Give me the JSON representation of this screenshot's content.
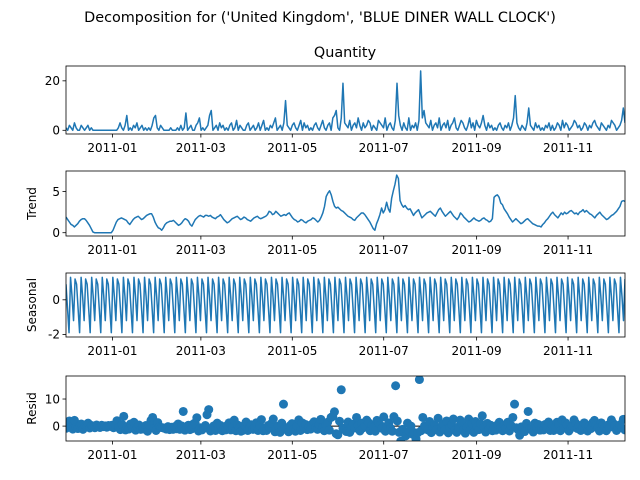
{
  "figure": {
    "suptitle": "Decomposition for ('United Kingdom', 'BLUE DINER WALL CLOCK')"
  },
  "chart_data": [
    {
      "type": "line",
      "panel": "observed",
      "title": "Quantity",
      "ylabel": "",
      "x_start": "2010-12-01",
      "x_end": "2011-12-09",
      "xticks": [
        "2011-01",
        "2011-03",
        "2011-05",
        "2011-07",
        "2011-09",
        "2011-11"
      ],
      "ylim": [
        -1.5,
        26
      ],
      "yticks": [
        0,
        20
      ],
      "grid": false,
      "series": [
        {
          "values": [
            1,
            0,
            2,
            1,
            0,
            3,
            1,
            0,
            0,
            2,
            1,
            0,
            1,
            2,
            0,
            1,
            0,
            0,
            0,
            0,
            0,
            0,
            0,
            0,
            0,
            0,
            0,
            0,
            0,
            0,
            0,
            1,
            3,
            1,
            0,
            2,
            6,
            0,
            1,
            0,
            2,
            1,
            3,
            0,
            1,
            2,
            0,
            1,
            0,
            1,
            0,
            2,
            5,
            6,
            1,
            0,
            2,
            1,
            0,
            0,
            0,
            0,
            1,
            0,
            0,
            0,
            1,
            0,
            2,
            0,
            1,
            7,
            0,
            1,
            2,
            0,
            0,
            2,
            3,
            5,
            0,
            1,
            0,
            1,
            2,
            6,
            8,
            0,
            1,
            2,
            0,
            3,
            1,
            2,
            0,
            1,
            0,
            2,
            3,
            0,
            1,
            4,
            0,
            2,
            1,
            0,
            0,
            2,
            3,
            0,
            1,
            2,
            0,
            1,
            3,
            0,
            2,
            4,
            0,
            1,
            0,
            2,
            1,
            3,
            5,
            0,
            1,
            2,
            0,
            3,
            12,
            2,
            1,
            0,
            2,
            3,
            1,
            0,
            2,
            4,
            0,
            3,
            1,
            2,
            0,
            1,
            0,
            2,
            3,
            1,
            0,
            2,
            4,
            1,
            0,
            2,
            3,
            0,
            5,
            6,
            8,
            1,
            0,
            5,
            19,
            3,
            2,
            1,
            4,
            0,
            2,
            3,
            1,
            5,
            2,
            0,
            3,
            1,
            2,
            4,
            3,
            0,
            2,
            1,
            0,
            4,
            3,
            2,
            1,
            5,
            0,
            2,
            3,
            1,
            0,
            4,
            19,
            6,
            2,
            0,
            3,
            1,
            0,
            5,
            0,
            2,
            1,
            3,
            0,
            4,
            24,
            5,
            8,
            3,
            2,
            1,
            4,
            0,
            2,
            3,
            1,
            5,
            0,
            2,
            3,
            1,
            4,
            0,
            2,
            3,
            5,
            1,
            0,
            2,
            4,
            3,
            1,
            0,
            2,
            5,
            1,
            3,
            0,
            4,
            2,
            1,
            3,
            6,
            2,
            0,
            3,
            1,
            2,
            0,
            1,
            0,
            2,
            3,
            1,
            0,
            2,
            1,
            3,
            0,
            2,
            5,
            14,
            3,
            1,
            0,
            2,
            1,
            0,
            3,
            9,
            2,
            1,
            0,
            3,
            1,
            2,
            0,
            1,
            0,
            2,
            1,
            3,
            0,
            2,
            0,
            1,
            3,
            2,
            0,
            4,
            1,
            3,
            2,
            0,
            1,
            2,
            4,
            3,
            1,
            2,
            0,
            1,
            3,
            2,
            0,
            2,
            1,
            3,
            4,
            2,
            1,
            0,
            3,
            2,
            1,
            0,
            2,
            1,
            4,
            3,
            2,
            0,
            1,
            2,
            4,
            9,
            3
          ]
        }
      ]
    },
    {
      "type": "line",
      "panel": "trend",
      "title": "",
      "ylabel": "Trend",
      "x_start": "2010-12-01",
      "x_end": "2011-12-09",
      "xticks": [
        "2011-01",
        "2011-03",
        "2011-05",
        "2011-07",
        "2011-09",
        "2011-11"
      ],
      "ylim": [
        -0.4,
        7.5
      ],
      "yticks": [
        0,
        5
      ],
      "grid": false,
      "series": [
        {
          "values": [
            1.9,
            1.6,
            1.3,
            1.0,
            0.9,
            0.7,
            0.9,
            1.1,
            1.4,
            1.6,
            1.7,
            1.7,
            1.5,
            1.2,
            0.9,
            0.5,
            0.1,
            0.0,
            0.0,
            0.0,
            0.0,
            0.0,
            0.0,
            0.0,
            0.0,
            0.0,
            0.0,
            0.0,
            0.3,
            0.8,
            1.3,
            1.6,
            1.7,
            1.8,
            1.7,
            1.6,
            1.5,
            1.2,
            1.0,
            1.3,
            1.6,
            1.8,
            1.9,
            2.0,
            1.8,
            1.6,
            1.7,
            1.9,
            2.1,
            2.2,
            2.3,
            2.3,
            1.9,
            1.3,
            0.9,
            0.6,
            0.5,
            0.3,
            0.6,
            1.0,
            1.2,
            1.3,
            1.4,
            1.4,
            1.5,
            1.3,
            1.1,
            0.9,
            1.0,
            1.2,
            1.5,
            1.7,
            1.6,
            1.4,
            1.0,
            0.8,
            1.2,
            1.6,
            1.8,
            2.0,
            2.1,
            2.0,
            1.9,
            2.1,
            2.1,
            2.0,
            2.1,
            1.9,
            1.8,
            1.7,
            1.9,
            2.0,
            2.2,
            1.9,
            1.6,
            1.4,
            1.2,
            1.3,
            1.5,
            1.7,
            1.8,
            1.9,
            2.0,
            1.8,
            1.6,
            1.7,
            1.9,
            1.8,
            1.6,
            1.5,
            1.4,
            1.6,
            1.8,
            1.9,
            2.0,
            1.8,
            1.7,
            1.8,
            1.9,
            2.0,
            2.2,
            2.6,
            2.5,
            2.2,
            2.3,
            2.6,
            2.4,
            2.2,
            2.0,
            2.1,
            2.2,
            2.1,
            2.3,
            2.4,
            2.1,
            1.8,
            1.6,
            1.5,
            1.3,
            1.4,
            1.6,
            1.5,
            1.3,
            1.2,
            1.4,
            1.5,
            1.6,
            1.8,
            1.7,
            1.5,
            1.3,
            1.5,
            1.9,
            2.4,
            3.2,
            4.4,
            4.8,
            5.1,
            4.6,
            3.8,
            3.2,
            3.0,
            3.1,
            2.9,
            2.7,
            2.6,
            2.4,
            2.2,
            2.0,
            1.9,
            1.8,
            1.6,
            1.5,
            1.8,
            2.0,
            2.2,
            2.4,
            2.4,
            2.2,
            1.9,
            1.6,
            1.3,
            0.9,
            0.5,
            0.3,
            1.1,
            1.6,
            2.2,
            3.0,
            2.4,
            2.8,
            3.7,
            2.9,
            2.5,
            4.2,
            5.1,
            5.9,
            7.0,
            6.6,
            3.9,
            3.4,
            3.1,
            3.3,
            3.0,
            2.8,
            2.9,
            2.5,
            2.1,
            2.4,
            2.6,
            2.8,
            2.3,
            1.8,
            2.0,
            2.2,
            2.4,
            2.5,
            2.6,
            2.4,
            2.2,
            2.0,
            2.4,
            2.8,
            3.0,
            2.6,
            2.3,
            2.0,
            2.2,
            2.4,
            2.6,
            2.3,
            2.0,
            1.8,
            1.6,
            1.9,
            2.4,
            2.2,
            1.9,
            1.7,
            1.5,
            1.3,
            1.4,
            1.6,
            1.8,
            1.6,
            1.5,
            1.4,
            1.5,
            1.7,
            1.8,
            1.6,
            1.5,
            1.3,
            1.4,
            1.7,
            4.3,
            4.5,
            4.6,
            4.3,
            3.6,
            3.4,
            2.9,
            2.6,
            2.3,
            1.9,
            1.6,
            1.3,
            1.5,
            1.7,
            1.5,
            1.3,
            1.1,
            1.2,
            1.4,
            1.6,
            1.7,
            1.5,
            1.3,
            1.1,
            1.0,
            0.9,
            0.8,
            0.8,
            0.7,
            1.0,
            1.2,
            1.5,
            1.7,
            2.0,
            2.3,
            2.5,
            2.2,
            2.0,
            1.8,
            2.1,
            2.4,
            2.2,
            2.5,
            2.3,
            2.4,
            2.6,
            2.7,
            2.5,
            2.3,
            2.4,
            2.2,
            2.5,
            2.6,
            2.8,
            2.5,
            2.7,
            2.5,
            2.3,
            2.2,
            2.0,
            1.8,
            2.1,
            2.3,
            2.5,
            2.2,
            2.0,
            1.8,
            1.6,
            1.7,
            1.9,
            2.1,
            2.2,
            2.4,
            2.6,
            2.9,
            3.2,
            3.8,
            3.9,
            3.8
          ]
        }
      ]
    },
    {
      "type": "line",
      "panel": "seasonal",
      "title": "",
      "ylabel": "Seasonal",
      "x_start": "2010-12-01",
      "x_end": "2011-12-09",
      "xticks": [
        "2011-01",
        "2011-03",
        "2011-05",
        "2011-07",
        "2011-09",
        "2011-11"
      ],
      "ylim": [
        -2.15,
        1.55
      ],
      "yticks": [
        -2,
        0
      ],
      "grid": false,
      "period": 7,
      "cycles": 53,
      "series": [
        {
          "values": [
            0.9,
            -0.5,
            -1.9,
            1.3,
            0.2,
            -1.2,
            1.2
          ]
        }
      ]
    },
    {
      "type": "scatter",
      "panel": "resid",
      "title": "",
      "ylabel": "Resid",
      "x_start": "2010-12-01",
      "x_end": "2011-12-09",
      "xticks": [
        "2011-01",
        "2011-03",
        "2011-05",
        "2011-07",
        "2011-09",
        "2011-11"
      ],
      "ylim": [
        -5.5,
        18.5
      ],
      "yticks": [
        0,
        10
      ],
      "grid": false,
      "baseline": 0,
      "series": [
        {
          "values": [
            -0.8,
            0.2,
            1.9,
            -0.4,
            -1.1,
            2.1,
            -0.5,
            -0.9,
            0.3,
            0.8,
            -1.2,
            0.4,
            0.6,
            1.1,
            -0.7,
            0.2,
            -0.3,
            -0.6,
            0.4,
            0.1,
            -0.5,
            0.3,
            -0.2,
            0.1,
            -0.4,
            0.2,
            -0.1,
            0.3,
            -0.6,
            0.5,
            2.0,
            -0.4,
            -1.3,
            0.6,
            3.6,
            -1.4,
            -0.2,
            -1.1,
            0.8,
            -0.3,
            1.4,
            -1.5,
            -0.5,
            0.4,
            -1.2,
            -0.3,
            -1.1,
            0.2,
            -1.9,
            0.3,
            2.1,
            3.2,
            -0.8,
            -1.6,
            1.3,
            -0.3,
            -0.5,
            -0.6,
            -0.8,
            -1.1,
            -0.2,
            -1.3,
            -0.4,
            -1.2,
            -0.2,
            -1.0,
            0.8,
            -1.2,
            0.1,
            5.4,
            -1.5,
            -0.6,
            0.3,
            -1.3,
            -1.0,
            0.8,
            1.2,
            3.1,
            -1.8,
            -0.6,
            -1.4,
            -0.8,
            0.2,
            4.2,
            6.1,
            -1.8,
            -0.9,
            0.1,
            -1.6,
            1.1,
            -0.8,
            0.2,
            -1.7,
            -0.8,
            -1.4,
            0.3,
            1.2,
            -1.4,
            -0.5,
            2.2,
            -1.7,
            0.4,
            -0.6,
            -1.9,
            -1.6,
            0.3,
            1.5,
            -1.6,
            -0.6,
            0.5,
            -1.2,
            -0.7,
            1.2,
            -1.6,
            0.3,
            2.4,
            -1.7,
            -0.7,
            -1.6,
            0.2,
            -0.5,
            1.0,
            2.6,
            -2.1,
            -1.1,
            0.0,
            -2.3,
            1.1,
            8.1,
            -0.7,
            -1.0,
            -2.1,
            0.2,
            0.9,
            -1.1,
            -1.9,
            0.0,
            2.3,
            -1.6,
            1.2,
            -0.4,
            0.6,
            -1.3,
            -0.3,
            -1.1,
            0.8,
            1.6,
            -0.6,
            -1.2,
            0.6,
            2.5,
            -0.7,
            -1.7,
            0.4,
            1.4,
            -1.5,
            3.2,
            3.6,
            5.3,
            -2.8,
            -3.2,
            1.8,
            13.4,
            -0.8,
            -1.4,
            -2.0,
            1.5,
            -2.3,
            -0.2,
            0.7,
            -0.7,
            3.2,
            0.2,
            -1.8,
            1.1,
            -0.6,
            0.0,
            2.2,
            1.3,
            -1.7,
            0.4,
            -0.4,
            -1.9,
            2.1,
            1.2,
            0.3,
            -0.8,
            3.4,
            -1.9,
            0.1,
            1.2,
            -0.8,
            -1.9,
            3.5,
            14.9,
            1.9,
            -2.3,
            -5.6,
            -1.2,
            -2.6,
            -3.6,
            1.1,
            -1.9,
            0.0,
            -3.0,
            -2.4,
            -4.8,
            -2.5,
            17.2,
            -1.7,
            3.2,
            0.1,
            -0.6,
            -1.4,
            1.7,
            -2.4,
            -0.3,
            0.5,
            -1.3,
            2.9,
            -2.2,
            -0.3,
            0.7,
            -1.4,
            1.9,
            -2.5,
            -0.4,
            0.6,
            2.6,
            -1.5,
            -2.3,
            -0.3,
            2.2,
            0.8,
            -1.3,
            -2.6,
            -0.3,
            2.6,
            -1.3,
            0.9,
            -2.3,
            1.7,
            -0.2,
            -1.3,
            0.9,
            3.8,
            -0.5,
            -2.2,
            1.0,
            -1.0,
            0.3,
            -1.7,
            -0.7,
            -1.5,
            0.5,
            1.4,
            -0.6,
            -1.7,
            0.3,
            -0.8,
            1.4,
            -1.8,
            0.2,
            3.2,
            8.1,
            -0.6,
            -1.3,
            -3.4,
            -0.3,
            -0.6,
            -2.0,
            1.0,
            5.4,
            -0.9,
            -1.0,
            -2.2,
            1.1,
            -0.7,
            0.6,
            -1.5,
            -0.6,
            -1.4,
            0.6,
            -0.5,
            1.5,
            -1.6,
            0.4,
            -1.6,
            -0.4,
            1.4,
            0.6,
            -1.7,
            2.3,
            -0.6,
            1.2,
            0.4,
            -1.8,
            -0.8,
            0.1,
            2.3,
            1.1,
            -0.9,
            0.2,
            -1.6,
            -0.7,
            1.2,
            0.4,
            -1.8,
            0.0,
            -0.9,
            1.3,
            2.1,
            0.2,
            -0.7,
            -1.8,
            1.2,
            0.3,
            -0.6,
            -1.7,
            0.4,
            -0.4,
            2.3,
            1.1,
            0.2,
            -1.6,
            -0.6,
            0.5,
            -0.7,
            2.5,
            -1.4
          ]
        }
      ]
    }
  ]
}
